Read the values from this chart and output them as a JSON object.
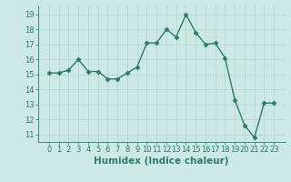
{
  "x": [
    0,
    1,
    2,
    3,
    4,
    5,
    6,
    7,
    8,
    9,
    10,
    11,
    12,
    13,
    14,
    15,
    16,
    17,
    18,
    19,
    20,
    21,
    22,
    23
  ],
  "y": [
    15.1,
    15.1,
    15.3,
    16.0,
    15.2,
    15.2,
    14.7,
    14.7,
    15.1,
    15.5,
    17.1,
    17.1,
    18.0,
    17.5,
    19.0,
    17.8,
    17.0,
    17.1,
    16.1,
    13.3,
    11.6,
    10.8,
    13.1,
    13.1
  ],
  "line_color": "#2d7a6e",
  "marker": "D",
  "marker_size": 2.5,
  "bg_color": "#cce9e4",
  "grid_color": "#b8d8d2",
  "xlabel": "Humidex (Indice chaleur)",
  "ylim": [
    10.5,
    19.6
  ],
  "yticks": [
    11,
    12,
    13,
    14,
    15,
    16,
    17,
    18,
    19
  ],
  "xticks": [
    0,
    1,
    2,
    3,
    4,
    5,
    6,
    7,
    8,
    9,
    10,
    11,
    12,
    13,
    14,
    15,
    16,
    17,
    18,
    19,
    20,
    21,
    22,
    23
  ],
  "tick_fontsize": 6,
  "label_fontsize": 7.5,
  "linewidth": 1.0
}
